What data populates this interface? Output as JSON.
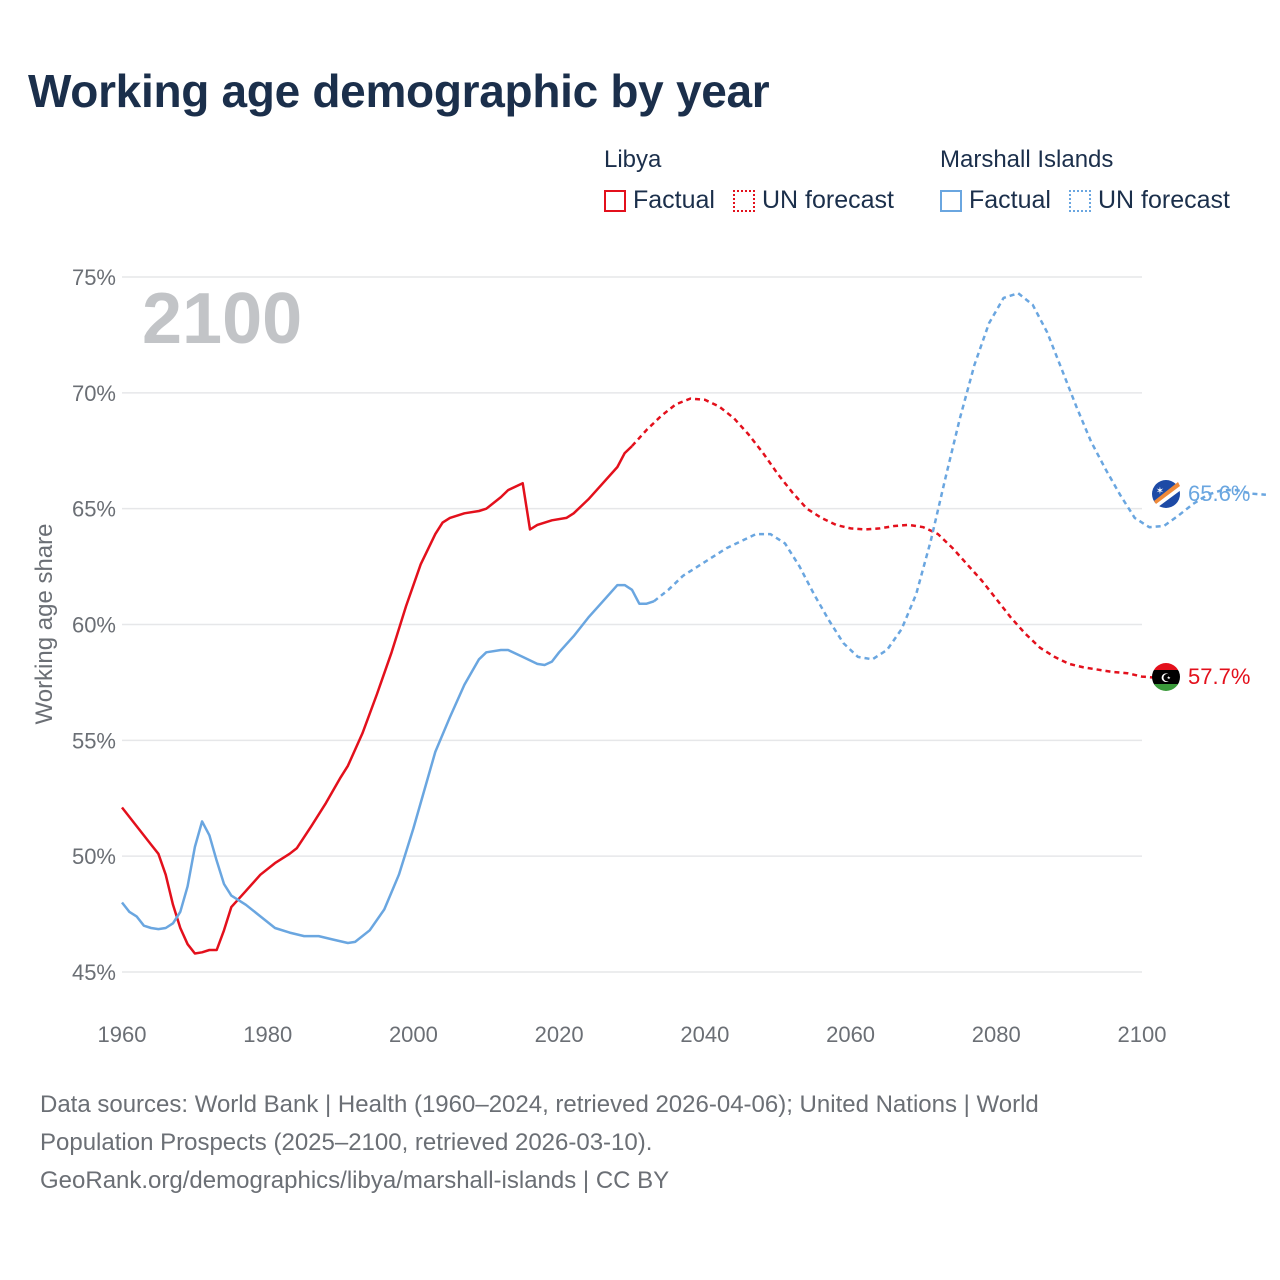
{
  "title": "Working age demographic by year",
  "legend": {
    "groups": [
      {
        "name": "Libya",
        "factual_label": "Factual",
        "forecast_label": "UN forecast",
        "color": "#e3101c"
      },
      {
        "name": "Marshall Islands",
        "factual_label": "Factual",
        "forecast_label": "UN forecast",
        "color": "#6aa6e0"
      }
    ]
  },
  "chart_data": {
    "type": "line",
    "title": "Working age demographic by year",
    "ylabel": "Working age share",
    "xlabel": "",
    "xlim": [
      1960,
      2100
    ],
    "ylim": [
      45,
      75
    ],
    "x_ticks": [
      "1960",
      "1980",
      "2000",
      "2020",
      "2040",
      "2060",
      "2080",
      "2100"
    ],
    "y_ticks": [
      "45%",
      "50%",
      "55%",
      "60%",
      "65%",
      "70%",
      "75%"
    ],
    "grid": true,
    "year_overlay": "2100",
    "series": [
      {
        "name": "Libya",
        "color": "#e3101c",
        "end_label": "57.7%",
        "factual": [
          [
            1960,
            52.1
          ],
          [
            1962,
            51.3
          ],
          [
            1964,
            50.5
          ],
          [
            1965,
            50.1
          ],
          [
            1966,
            49.2
          ],
          [
            1967,
            47.9
          ],
          [
            1968,
            46.9
          ],
          [
            1969,
            46.2
          ],
          [
            1970,
            45.8
          ],
          [
            1971,
            45.85
          ],
          [
            1972,
            45.95
          ],
          [
            1973,
            45.95
          ],
          [
            1974,
            46.8
          ],
          [
            1975,
            47.8
          ],
          [
            1977,
            48.5
          ],
          [
            1979,
            49.2
          ],
          [
            1981,
            49.7
          ],
          [
            1983,
            50.1
          ],
          [
            1984,
            50.35
          ],
          [
            1986,
            51.3
          ],
          [
            1988,
            52.3
          ],
          [
            1990,
            53.4
          ],
          [
            1991,
            53.9
          ],
          [
            1993,
            55.3
          ],
          [
            1995,
            57.0
          ],
          [
            1997,
            58.8
          ],
          [
            1999,
            60.8
          ],
          [
            2001,
            62.6
          ],
          [
            2003,
            63.9
          ],
          [
            2004,
            64.4
          ],
          [
            2005,
            64.6
          ],
          [
            2007,
            64.8
          ],
          [
            2009,
            64.9
          ],
          [
            2010,
            65.0
          ],
          [
            2012,
            65.5
          ],
          [
            2013,
            65.8
          ],
          [
            2015,
            66.1
          ],
          [
            2016,
            64.1
          ],
          [
            2017,
            64.3
          ],
          [
            2019,
            64.5
          ],
          [
            2021,
            64.6
          ],
          [
            2022,
            64.8
          ],
          [
            2024,
            65.4
          ],
          [
            2026,
            66.1
          ],
          [
            2028,
            66.8
          ],
          [
            2029,
            67.4
          ],
          [
            2030,
            67.7
          ]
        ],
        "forecast": [
          [
            2030,
            67.7
          ],
          [
            2032,
            68.4
          ],
          [
            2034,
            69.0
          ],
          [
            2036,
            69.5
          ],
          [
            2038,
            69.75
          ],
          [
            2040,
            69.7
          ],
          [
            2042,
            69.4
          ],
          [
            2044,
            68.9
          ],
          [
            2046,
            68.2
          ],
          [
            2048,
            67.4
          ],
          [
            2050,
            66.5
          ],
          [
            2052,
            65.7
          ],
          [
            2054,
            65.0
          ],
          [
            2056,
            64.6
          ],
          [
            2058,
            64.3
          ],
          [
            2060,
            64.15
          ],
          [
            2062,
            64.1
          ],
          [
            2064,
            64.15
          ],
          [
            2066,
            64.25
          ],
          [
            2068,
            64.3
          ],
          [
            2070,
            64.2
          ],
          [
            2072,
            63.9
          ],
          [
            2074,
            63.3
          ],
          [
            2076,
            62.6
          ],
          [
            2078,
            61.9
          ],
          [
            2080,
            61.1
          ],
          [
            2082,
            60.3
          ],
          [
            2084,
            59.6
          ],
          [
            2086,
            59.0
          ],
          [
            2088,
            58.6
          ],
          [
            2090,
            58.3
          ],
          [
            2092,
            58.15
          ],
          [
            2094,
            58.05
          ],
          [
            2096,
            57.95
          ],
          [
            2098,
            57.9
          ],
          [
            2100,
            57.75
          ],
          [
            2102,
            57.7
          ]
        ]
      },
      {
        "name": "Marshall Islands",
        "color": "#6aa6e0",
        "end_label": "65.6%",
        "factual": [
          [
            1960,
            48.0
          ],
          [
            1961,
            47.6
          ],
          [
            1962,
            47.4
          ],
          [
            1963,
            47.0
          ],
          [
            1964,
            46.9
          ],
          [
            1965,
            46.85
          ],
          [
            1966,
            46.9
          ],
          [
            1967,
            47.1
          ],
          [
            1968,
            47.6
          ],
          [
            1969,
            48.7
          ],
          [
            1970,
            50.4
          ],
          [
            1971,
            51.5
          ],
          [
            1972,
            50.9
          ],
          [
            1973,
            49.8
          ],
          [
            1974,
            48.8
          ],
          [
            1975,
            48.3
          ],
          [
            1977,
            47.9
          ],
          [
            1979,
            47.4
          ],
          [
            1981,
            46.9
          ],
          [
            1983,
            46.7
          ],
          [
            1985,
            46.55
          ],
          [
            1987,
            46.55
          ],
          [
            1989,
            46.4
          ],
          [
            1991,
            46.25
          ],
          [
            1992,
            46.3
          ],
          [
            1994,
            46.8
          ],
          [
            1996,
            47.7
          ],
          [
            1998,
            49.2
          ],
          [
            2000,
            51.2
          ],
          [
            2002,
            53.4
          ],
          [
            2003,
            54.5
          ],
          [
            2005,
            56.0
          ],
          [
            2007,
            57.4
          ],
          [
            2009,
            58.5
          ],
          [
            2010,
            58.8
          ],
          [
            2012,
            58.9
          ],
          [
            2013,
            58.9
          ],
          [
            2015,
            58.6
          ],
          [
            2017,
            58.3
          ],
          [
            2018,
            58.25
          ],
          [
            2019,
            58.4
          ],
          [
            2020,
            58.8
          ],
          [
            2022,
            59.5
          ],
          [
            2024,
            60.3
          ],
          [
            2026,
            61.0
          ],
          [
            2028,
            61.7
          ],
          [
            2029,
            61.7
          ],
          [
            2030,
            61.5
          ],
          [
            2031,
            60.9
          ],
          [
            2032,
            60.9
          ],
          [
            2033,
            61.0
          ]
        ],
        "forecast": [
          [
            2033,
            61.0
          ],
          [
            2035,
            61.5
          ],
          [
            2037,
            62.1
          ],
          [
            2039,
            62.5
          ],
          [
            2041,
            62.9
          ],
          [
            2043,
            63.3
          ],
          [
            2045,
            63.6
          ],
          [
            2047,
            63.9
          ],
          [
            2049,
            63.9
          ],
          [
            2051,
            63.5
          ],
          [
            2053,
            62.5
          ],
          [
            2055,
            61.3
          ],
          [
            2057,
            60.2
          ],
          [
            2059,
            59.2
          ],
          [
            2061,
            58.6
          ],
          [
            2063,
            58.5
          ],
          [
            2065,
            58.9
          ],
          [
            2067,
            59.8
          ],
          [
            2069,
            61.3
          ],
          [
            2071,
            63.6
          ],
          [
            2073,
            66.3
          ],
          [
            2075,
            68.9
          ],
          [
            2077,
            71.2
          ],
          [
            2079,
            73.0
          ],
          [
            2081,
            74.1
          ],
          [
            2083,
            74.3
          ],
          [
            2085,
            73.8
          ],
          [
            2087,
            72.6
          ],
          [
            2089,
            71.0
          ],
          [
            2091,
            69.4
          ],
          [
            2093,
            67.9
          ],
          [
            2095,
            66.7
          ],
          [
            2097,
            65.6
          ],
          [
            2099,
            64.6
          ],
          [
            2101,
            64.2
          ],
          [
            2103,
            64.25
          ],
          [
            2105,
            64.7
          ],
          [
            2107,
            65.2
          ],
          [
            2109,
            65.6
          ],
          [
            2111,
            65.8
          ],
          [
            2113,
            65.8
          ],
          [
            2115,
            65.65
          ],
          [
            2117,
            65.6
          ]
        ]
      }
    ]
  },
  "footer": {
    "line1": "Data sources: World Bank | Health (1960–2024, retrieved 2026-04-06); United Nations | World",
    "line2": "Population Prospects (2025–2100, retrieved 2026-03-10).",
    "line3": "GeoRank.org/demographics/libya/marshall-islands | CC BY"
  }
}
